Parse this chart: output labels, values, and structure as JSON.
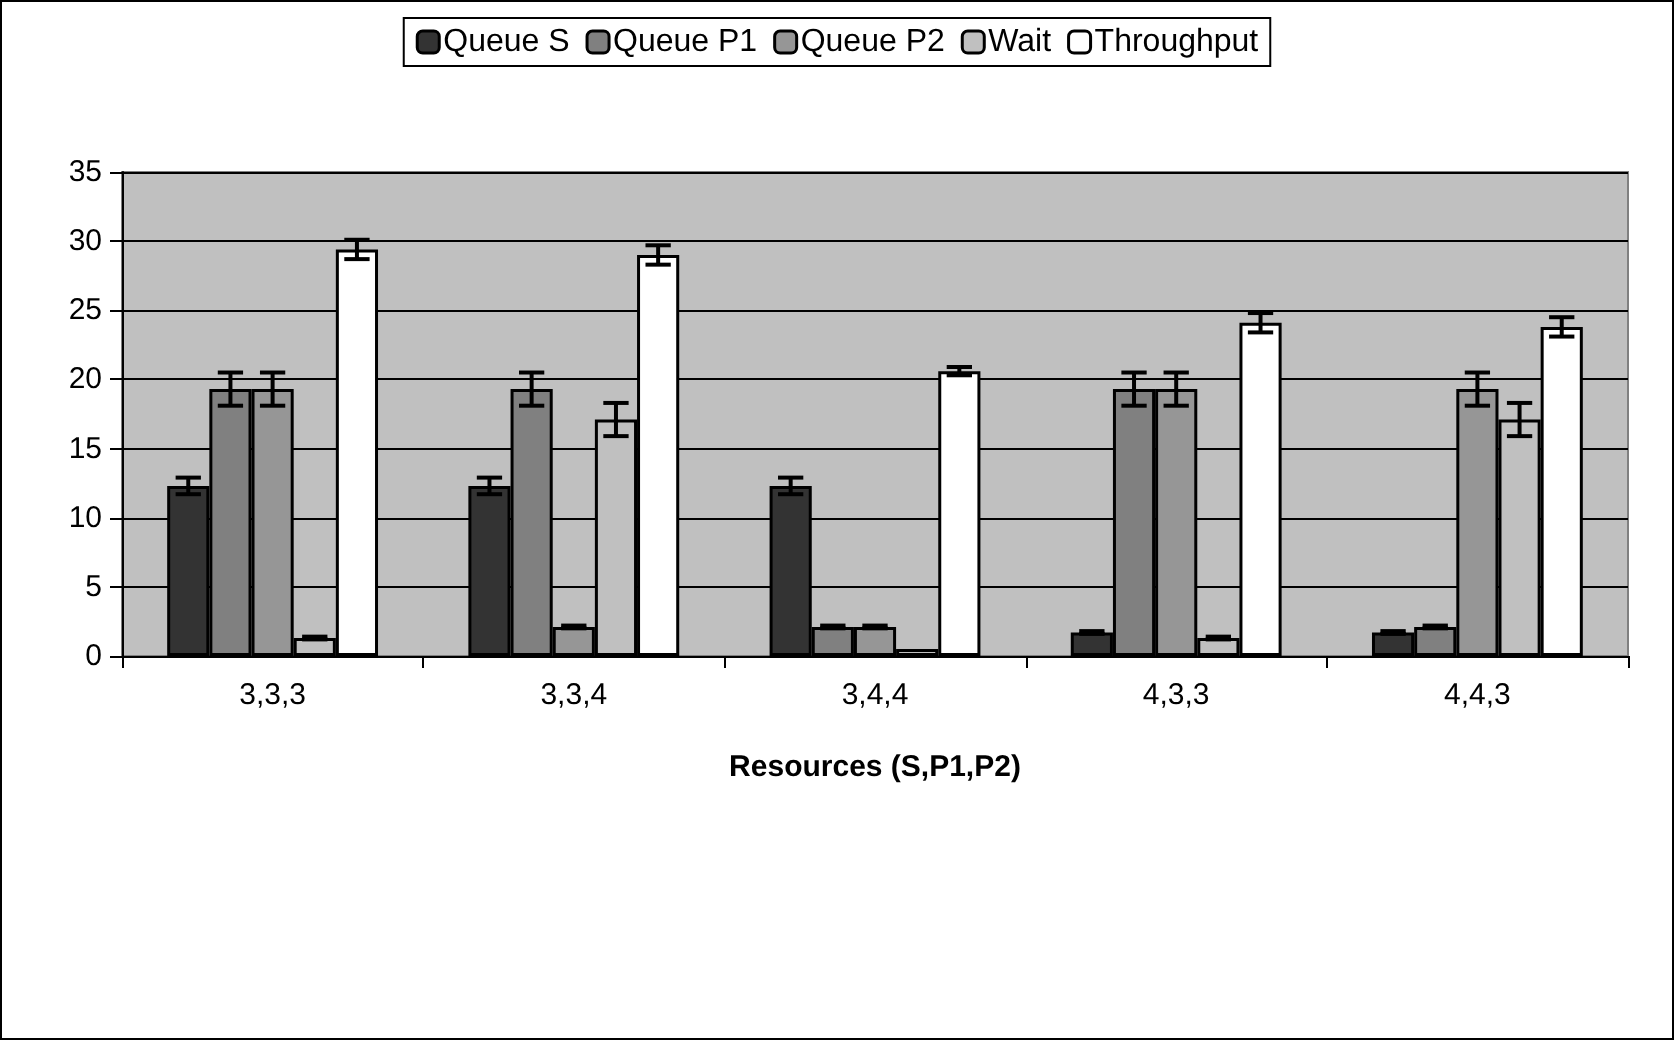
{
  "chart_data": {
    "type": "bar",
    "xlabel": "Resources (S,P1,P2)",
    "categories": [
      "3,3,3",
      "3,3,4",
      "3,4,4",
      "4,3,3",
      "4,4,3"
    ],
    "series": [
      {
        "name": "Queue S",
        "color": "#333333",
        "values": [
          12.3,
          12.3,
          12.3,
          1.7,
          1.7
        ],
        "errors": [
          0.6,
          0.6,
          0.6,
          0.1,
          0.1
        ]
      },
      {
        "name": "Queue P1",
        "color": "#808080",
        "values": [
          19.3,
          19.3,
          2.1,
          19.3,
          2.1
        ],
        "errors": [
          1.2,
          1.2,
          0.1,
          1.2,
          0.1
        ]
      },
      {
        "name": "Queue P2",
        "color": "#969696",
        "values": [
          19.3,
          2.1,
          2.1,
          19.3,
          19.3
        ],
        "errors": [
          1.2,
          0.1,
          0.1,
          1.2,
          1.2
        ]
      },
      {
        "name": "Wait",
        "color": "#c0c0c0",
        "values": [
          1.3,
          17.1,
          0.5,
          1.3,
          17.1
        ],
        "errors": [
          0.1,
          1.2,
          null,
          0.1,
          1.2
        ]
      },
      {
        "name": "Throughput",
        "color": "#ffffff",
        "values": [
          29.4,
          29.0,
          20.6,
          24.1,
          23.8
        ],
        "errors": [
          0.7,
          0.7,
          0.3,
          0.7,
          0.7
        ]
      }
    ],
    "ylim": [
      0,
      35
    ],
    "yticks": [
      0,
      5,
      10,
      15,
      20,
      25,
      30,
      35
    ],
    "grid": "y",
    "legend": "top"
  }
}
